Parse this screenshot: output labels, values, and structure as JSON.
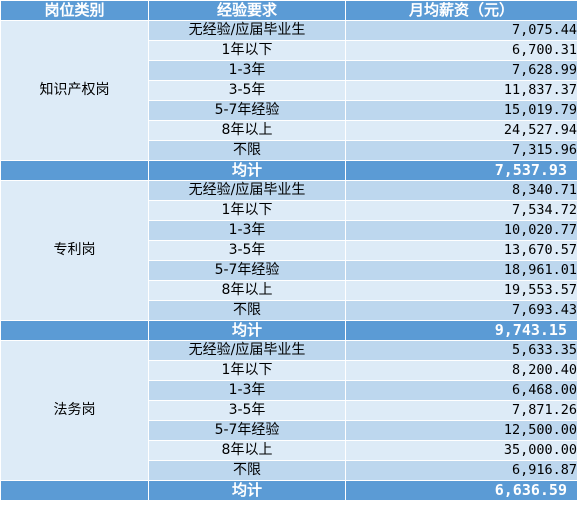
{
  "headers": {
    "category": "岗位类别",
    "experience": "经验要求",
    "salary": "月均薪资（元）"
  },
  "colors": {
    "header_bg": "#5b9bd5",
    "row_dark": "#bdd7ee",
    "row_light": "#ddebf7",
    "total_text": "#ffffff"
  },
  "groups": [
    {
      "category": "知识产权岗",
      "rows": [
        {
          "experience": "无经验/应届毕业生",
          "salary": "7,075.44"
        },
        {
          "experience": "1年以下",
          "salary": "6,700.31"
        },
        {
          "experience": "1-3年",
          "salary": "7,628.99"
        },
        {
          "experience": "3-5年",
          "salary": "11,837.37"
        },
        {
          "experience": "5-7年经验",
          "salary": "15,019.79"
        },
        {
          "experience": "8年以上",
          "salary": "24,527.94"
        },
        {
          "experience": "不限",
          "salary": "7,315.96"
        }
      ],
      "total_label": "均计",
      "total_value": "7,537.93"
    },
    {
      "category": "专利岗",
      "rows": [
        {
          "experience": "无经验/应届毕业生",
          "salary": "8,340.71"
        },
        {
          "experience": "1年以下",
          "salary": "7,534.72"
        },
        {
          "experience": "1-3年",
          "salary": "10,020.77"
        },
        {
          "experience": "3-5年",
          "salary": "13,670.57"
        },
        {
          "experience": "5-7年经验",
          "salary": "18,961.01"
        },
        {
          "experience": "8年以上",
          "salary": "19,553.57"
        },
        {
          "experience": "不限",
          "salary": "7,693.43"
        }
      ],
      "total_label": "均计",
      "total_value": "9,743.15"
    },
    {
      "category": "法务岗",
      "rows": [
        {
          "experience": "无经验/应届毕业生",
          "salary": "5,633.35"
        },
        {
          "experience": "1年以下",
          "salary": "8,200.40"
        },
        {
          "experience": "1-3年",
          "salary": "6,468.00"
        },
        {
          "experience": "3-5年",
          "salary": "7,871.26"
        },
        {
          "experience": "5-7年经验",
          "salary": "12,500.00"
        },
        {
          "experience": "8年以上",
          "salary": "35,000.00"
        },
        {
          "experience": "不限",
          "salary": "6,916.87"
        }
      ],
      "total_label": "均计",
      "total_value": "6,636.59"
    }
  ]
}
